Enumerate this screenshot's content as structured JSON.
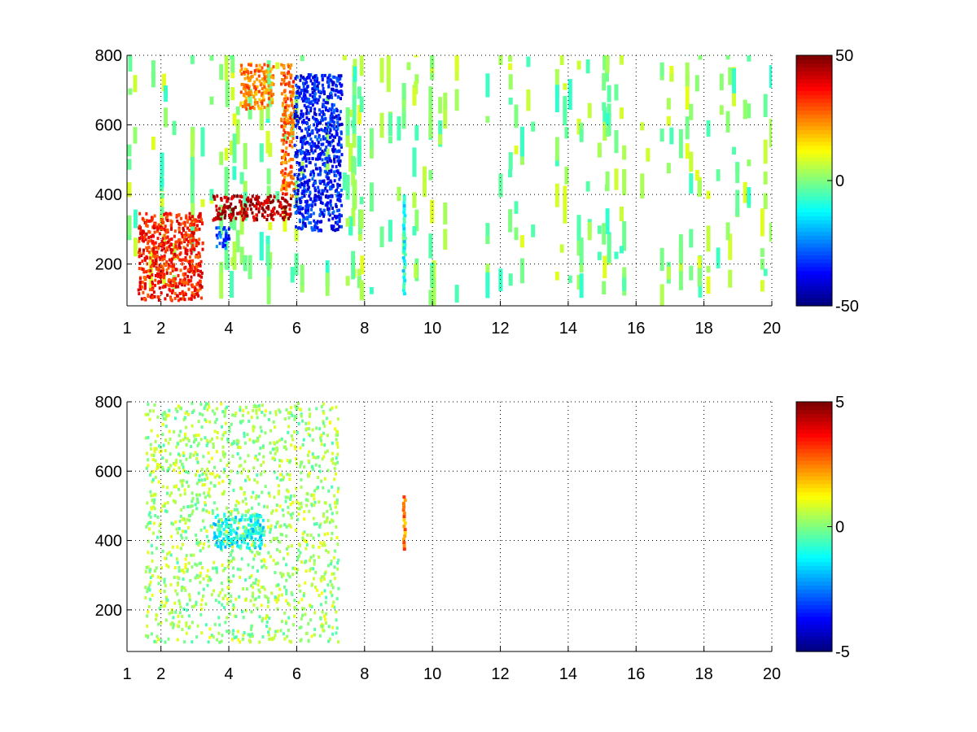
{
  "figure": {
    "background": "#ffffff"
  },
  "chart_data": [
    {
      "type": "heatmap",
      "title": "",
      "xlabel": "",
      "ylabel": "",
      "xlim": [
        1,
        20
      ],
      "ylim": [
        80,
        800
      ],
      "x_ticks": [
        1,
        2,
        4,
        6,
        8,
        10,
        12,
        14,
        16,
        18,
        20
      ],
      "x_tick_labels": [
        "1",
        "2",
        "4",
        "6",
        "8",
        "10",
        "12",
        "14",
        "16",
        "18",
        "20"
      ],
      "y_ticks": [
        200,
        400,
        600,
        800
      ],
      "y_tick_labels": [
        "200",
        "400",
        "600",
        "800"
      ],
      "grid": true,
      "colormap": "jet",
      "colorbar": {
        "min": -50,
        "max": 50,
        "ticks": [
          -50,
          0,
          50
        ],
        "tick_labels": [
          "-50",
          "0",
          "50"
        ]
      },
      "features": [
        {
          "x_range": [
            1.3,
            3.2
          ],
          "y_range": [
            100,
            350
          ],
          "value": 35
        },
        {
          "x_range": [
            3.5,
            5.8
          ],
          "y_range": [
            330,
            400
          ],
          "value": 45
        },
        {
          "x_range": [
            4.3,
            5.3
          ],
          "y_range": [
            650,
            780
          ],
          "value": 25
        },
        {
          "x_range": [
            5.5,
            5.9
          ],
          "y_range": [
            400,
            780
          ],
          "value": 28
        },
        {
          "x_range": [
            3.6,
            4.0
          ],
          "y_range": [
            250,
            310
          ],
          "value": -30
        },
        {
          "x_range": [
            5.9,
            7.3
          ],
          "y_range": [
            300,
            750
          ],
          "value": -35
        },
        {
          "x_range": [
            9.1,
            9.2
          ],
          "y_range": [
            80,
            400
          ],
          "value": -10
        }
      ],
      "background_noise": {
        "x_range": [
          1,
          20
        ],
        "value_range": [
          -8,
          10
        ]
      }
    },
    {
      "type": "heatmap",
      "title": "",
      "xlabel": "",
      "ylabel": "",
      "xlim": [
        1,
        20
      ],
      "ylim": [
        80,
        800
      ],
      "x_ticks": [
        1,
        2,
        4,
        6,
        8,
        10,
        12,
        14,
        16,
        18,
        20
      ],
      "x_tick_labels": [
        "1",
        "2",
        "4",
        "6",
        "8",
        "10",
        "12",
        "14",
        "16",
        "18",
        "20"
      ],
      "y_ticks": [
        200,
        400,
        600,
        800
      ],
      "y_tick_labels": [
        "200",
        "400",
        "600",
        "800"
      ],
      "grid": true,
      "colormap": "jet",
      "colorbar": {
        "min": -5,
        "max": 5,
        "ticks": [
          -5,
          0,
          5
        ],
        "tick_labels": [
          "-5",
          "0",
          "5"
        ]
      },
      "features": [
        {
          "x_range": [
            1.5,
            7.2
          ],
          "y_range": [
            110,
            800
          ],
          "value": 0.3
        },
        {
          "x_range": [
            3.5,
            5.0
          ],
          "y_range": [
            380,
            480
          ],
          "value": -1.2
        },
        {
          "x_range": [
            9.1,
            9.2
          ],
          "y_range": [
            350,
            530
          ],
          "value": 2.5
        }
      ]
    }
  ]
}
